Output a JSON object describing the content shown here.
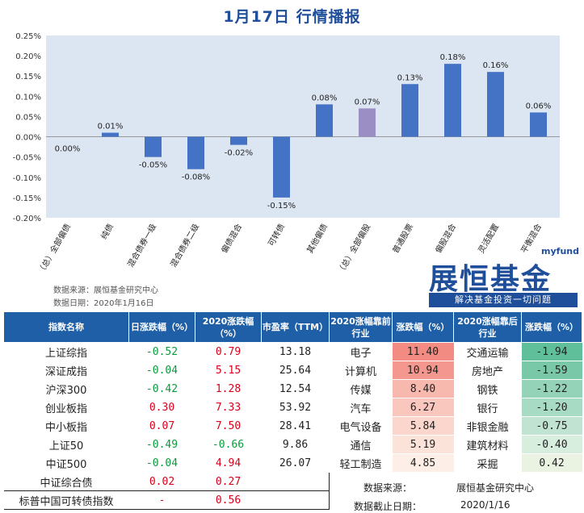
{
  "title": "1月17日  行情播报",
  "chart_data": {
    "type": "bar",
    "categories": [
      "（总）全部偏债",
      "纯债",
      "混合债券一级",
      "混合债券二级",
      "偏债混合",
      "可转债",
      "其他偏债",
      "（总）全部偏股",
      "普通股票",
      "偏股混合",
      "灵活配置",
      "平衡混合"
    ],
    "values": [
      0.0,
      0.01,
      -0.05,
      -0.08,
      -0.02,
      -0.15,
      0.08,
      0.07,
      0.13,
      0.18,
      0.16,
      0.06
    ],
    "value_labels": [
      "0.00%",
      "0.01%",
      "-0.05%",
      "-0.08%",
      "-0.02%",
      "-0.15%",
      "0.08%",
      "0.07%",
      "0.13%",
      "0.18%",
      "0.16%",
      "0.06%"
    ],
    "highlight_index": 7,
    "ylim": [
      -0.2,
      0.25
    ],
    "yticks": [
      0.25,
      0.2,
      0.15,
      0.1,
      0.05,
      0.0,
      -0.05,
      -0.1,
      -0.15,
      -0.2
    ],
    "ytick_labels": [
      "0.25%",
      "0.20%",
      "0.15%",
      "0.10%",
      "0.05%",
      "0.00%",
      "-0.05%",
      "-0.10%",
      "-0.15%",
      "-0.20%"
    ],
    "bar_color": "#4472c4",
    "highlight_color": "#9b8ec4"
  },
  "source": {
    "line1": "数据来源：展恒基金研究中心",
    "line2": "数据日期：2020年1月16日"
  },
  "logo": {
    "brand": "展恒基金",
    "myfund": "myfund",
    "slogan": "解决基金投资一切问题"
  },
  "table": {
    "headers": [
      "指数名称",
      "日涨跌幅（%）",
      "2020涨跌幅（%）",
      "市盈率（TTM）",
      "2020涨幅靠前行业",
      "涨跌幅（%）",
      "2020涨幅靠后行业",
      "涨跌幅（%）"
    ],
    "rows": [
      {
        "name": "上证综指",
        "day": "-0.52",
        "ytd": "0.79",
        "pe": "13.18",
        "top": "电子",
        "top_chg": "11.40",
        "bot": "交通运输",
        "bot_chg": "-1.94"
      },
      {
        "name": "深证成指",
        "day": "-0.04",
        "ytd": "5.15",
        "pe": "25.64",
        "top": "计算机",
        "top_chg": "10.94",
        "bot": "房地产",
        "bot_chg": "-1.59"
      },
      {
        "name": "沪深300",
        "day": "-0.42",
        "ytd": "1.28",
        "pe": "12.54",
        "top": "传媒",
        "top_chg": "8.40",
        "bot": "钢铁",
        "bot_chg": "-1.22"
      },
      {
        "name": "创业板指",
        "day": "0.30",
        "ytd": "7.33",
        "pe": "53.92",
        "top": "汽车",
        "top_chg": "6.27",
        "bot": "银行",
        "bot_chg": "-1.20"
      },
      {
        "name": "中小板指",
        "day": "0.07",
        "ytd": "7.50",
        "pe": "28.41",
        "top": "电气设备",
        "top_chg": "5.84",
        "bot": "非银金融",
        "bot_chg": "-0.75"
      },
      {
        "name": "上证50",
        "day": "-0.49",
        "ytd": "-0.66",
        "pe": "9.86",
        "top": "通信",
        "top_chg": "5.19",
        "bot": "建筑材料",
        "bot_chg": "-0.40"
      },
      {
        "name": "中证500",
        "day": "-0.04",
        "ytd": "4.94",
        "pe": "26.07",
        "top": "轻工制造",
        "top_chg": "4.85",
        "bot": "采掘",
        "bot_chg": "0.42"
      },
      {
        "name": "中证综合债",
        "day": "0.02",
        "ytd": "0.27",
        "pe": "",
        "top": "",
        "top_chg": "",
        "bot": "",
        "bot_chg": ""
      },
      {
        "name": "标普中国可转债指数",
        "day": "-",
        "ytd": "0.56",
        "pe": "",
        "top": "",
        "top_chg": "",
        "bot": "",
        "bot_chg": ""
      }
    ],
    "top_colors": [
      "#f28b82",
      "#f4978e",
      "#f7b8ad",
      "#f9c7bd",
      "#fbd6cc",
      "#fce3da",
      "#fdeee7"
    ],
    "bot_colors": [
      "#5fbf9a",
      "#79c9a8",
      "#95d3b8",
      "#a8dbc4",
      "#c0e4d1",
      "#d7edde",
      "#eaf3e2"
    ],
    "footer_source_label": "数据来源：",
    "footer_source_value": "展恒基金研究中心",
    "footer_date_label": "数据截止日期：",
    "footer_date_value": "2020/1/16"
  }
}
